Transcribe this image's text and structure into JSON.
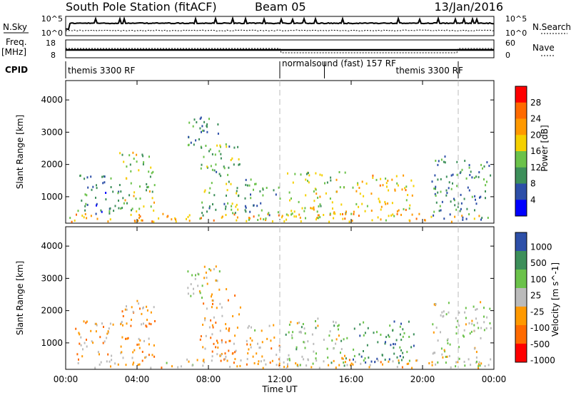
{
  "header": {
    "station": "South Pole Station (fitACF)",
    "beam": "Beam 05",
    "date": "13/Jan/2016"
  },
  "status_panels": {
    "nsky_label": "N.Sky",
    "nsearch_label": "N.Search",
    "nsky_ticks": [
      "10^5",
      "10^0"
    ],
    "nsky_ticks_right": [
      "10^5",
      "10^0"
    ],
    "freq_label_1": "Freq.",
    "freq_label_2": "[MHz]",
    "freq_ticks": [
      "18",
      "8"
    ],
    "nave_label": "Nave",
    "nave_ticks": [
      "60",
      "0"
    ],
    "cpid_label": "CPID",
    "cpid_segments": [
      {
        "name": "themis 3300 RF",
        "start_hour": 0,
        "end_hour": 12.0
      },
      {
        "name": "normalsound (fast) 157 RF",
        "start_hour": 12.0,
        "end_hour": 14.5
      },
      {
        "name": "themis 3300 RF",
        "start_hour": 14.5,
        "end_hour": 22.0
      }
    ]
  },
  "time_axis": {
    "label": "Time UT",
    "ticks": [
      "00:00",
      "04:00",
      "08:00",
      "12:00",
      "16:00",
      "20:00",
      "00:00"
    ],
    "range_hours": [
      0,
      24
    ],
    "dashed_markers_hours": [
      12.0,
      22.0
    ]
  },
  "chart_data": [
    {
      "type": "heatmap",
      "title": "",
      "xlabel": "",
      "ylabel": "Slant Range [km]",
      "yticks": [
        "1000",
        "2000",
        "3000",
        "4000"
      ],
      "ylim": [
        180,
        4600
      ],
      "colorbar": {
        "label": "Power [dB]",
        "ticks": [
          "4",
          "8",
          "12",
          "16",
          "20",
          "24",
          "28"
        ],
        "range": [
          0,
          30
        ],
        "colors": [
          "#0000ff",
          "#2d4fa8",
          "#3d8f5a",
          "#6bc24a",
          "#f5d000",
          "#ff9900",
          "#ff6a00",
          "#ff0000"
        ]
      },
      "echo_regions": [
        {
          "t0": 0.2,
          "t1": 23.8,
          "r0": 250,
          "r1": 520,
          "value": 20
        },
        {
          "t0": 0.5,
          "t1": 3.2,
          "r0": 500,
          "r1": 1700,
          "value": 8
        },
        {
          "t0": 3.0,
          "t1": 5.0,
          "r0": 550,
          "r1": 2400,
          "value": 14
        },
        {
          "t0": 6.8,
          "t1": 8.6,
          "r0": 2300,
          "r1": 3500,
          "value": 9
        },
        {
          "t0": 7.5,
          "t1": 9.8,
          "r0": 450,
          "r1": 2700,
          "value": 12
        },
        {
          "t0": 10.0,
          "t1": 12.0,
          "r0": 300,
          "r1": 1600,
          "value": 10
        },
        {
          "t0": 12.3,
          "t1": 15.8,
          "r0": 300,
          "r1": 1800,
          "value": 15
        },
        {
          "t0": 16.0,
          "t1": 19.5,
          "r0": 400,
          "r1": 1700,
          "value": 18
        },
        {
          "t0": 20.5,
          "t1": 23.8,
          "r0": 300,
          "r1": 2300,
          "value": 10
        }
      ]
    },
    {
      "type": "heatmap",
      "title": "",
      "xlabel": "Time UT",
      "ylabel": "Slant Range [km]",
      "yticks": [
        "1000",
        "2000",
        "3000",
        "4000"
      ],
      "ylim": [
        180,
        4600
      ],
      "colorbar": {
        "label": "Velocity [m s^-1]",
        "ticks": [
          "1000",
          "500",
          "100",
          "25",
          "-25",
          "-100",
          "-500",
          "-1000"
        ],
        "range": [
          -1000,
          1000
        ],
        "colors": [
          "#ff0000",
          "#ff6a00",
          "#ff9900",
          "#bbbbbb",
          "#6bc24a",
          "#3d8f5a",
          "#2d4fa8"
        ]
      },
      "echo_regions": [
        {
          "t0": 0.2,
          "t1": 23.8,
          "r0": 250,
          "r1": 520,
          "value": -150
        },
        {
          "t0": 0.5,
          "t1": 3.2,
          "r0": 500,
          "r1": 1700,
          "value": -200
        },
        {
          "t0": 3.0,
          "t1": 5.0,
          "r0": 550,
          "r1": 2400,
          "value": -300
        },
        {
          "t0": 6.8,
          "t1": 8.6,
          "r0": 2300,
          "r1": 3500,
          "value": 0
        },
        {
          "t0": 7.5,
          "t1": 9.8,
          "r0": 450,
          "r1": 2700,
          "value": -250
        },
        {
          "t0": 10.0,
          "t1": 12.0,
          "r0": 300,
          "r1": 1600,
          "value": -150
        },
        {
          "t0": 12.3,
          "t1": 15.8,
          "r0": 300,
          "r1": 1800,
          "value": 150
        },
        {
          "t0": 16.0,
          "t1": 19.5,
          "r0": 400,
          "r1": 1700,
          "value": 600
        },
        {
          "t0": 20.5,
          "t1": 23.8,
          "r0": 300,
          "r1": 2300,
          "value": 0
        }
      ]
    }
  ]
}
